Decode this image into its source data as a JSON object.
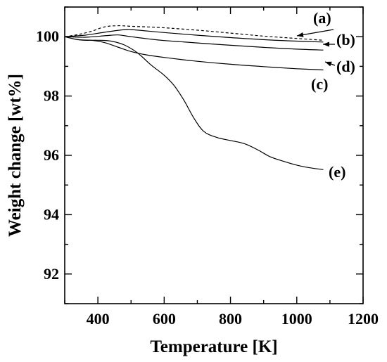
{
  "chart_data": {
    "type": "line",
    "xlabel": "Temperature [K]",
    "ylabel": "Weight change [wt%]",
    "xlim": [
      300,
      1200
    ],
    "ylim": [
      91,
      101
    ],
    "xticks": [
      400,
      600,
      800,
      1000,
      1200
    ],
    "yticks": [
      92,
      94,
      96,
      98,
      100
    ],
    "x_tick_labels": [
      "400",
      "600",
      "800",
      "1000",
      "1200"
    ],
    "y_tick_labels": [
      "92",
      "94",
      "96",
      "98",
      "100"
    ],
    "grid": false,
    "series": [
      {
        "name": "(a)",
        "style": "dashed",
        "x": [
          300,
          340,
          380,
          420,
          460,
          500,
          550,
          600,
          700,
          800,
          900,
          1000,
          1080
        ],
        "y": [
          100.0,
          100.07,
          100.18,
          100.33,
          100.37,
          100.35,
          100.33,
          100.3,
          100.22,
          100.12,
          100.02,
          99.94,
          99.88
        ]
      },
      {
        "name": "(b)",
        "style": "solid",
        "x": [
          300,
          360,
          420,
          480,
          500,
          550,
          600,
          700,
          800,
          900,
          1000,
          1080
        ],
        "y": [
          100.0,
          100.05,
          100.15,
          100.24,
          100.24,
          100.19,
          100.14,
          100.05,
          99.97,
          99.9,
          99.85,
          99.82
        ]
      },
      {
        "name": "(d)",
        "style": "solid",
        "x": [
          300,
          360,
          420,
          460,
          500,
          550,
          600,
          700,
          800,
          900,
          1000,
          1080
        ],
        "y": [
          100.0,
          99.98,
          100.03,
          100.06,
          100.0,
          99.93,
          99.87,
          99.79,
          99.71,
          99.64,
          99.58,
          99.55
        ]
      },
      {
        "name": "(c)",
        "style": "solid",
        "x": [
          300,
          340,
          380,
          420,
          460,
          500,
          550,
          600,
          700,
          800,
          900,
          1000,
          1080
        ],
        "y": [
          100.0,
          99.9,
          99.88,
          99.8,
          99.65,
          99.5,
          99.38,
          99.3,
          99.17,
          99.07,
          98.99,
          98.92,
          98.88
        ]
      },
      {
        "name": "(e)",
        "style": "solid",
        "x": [
          300,
          330,
          360,
          400,
          440,
          480,
          520,
          560,
          600,
          630,
          660,
          690,
          720,
          760,
          800,
          840,
          880,
          920,
          960,
          1000,
          1040,
          1080
        ],
        "y": [
          100.0,
          99.92,
          99.88,
          99.88,
          99.85,
          99.72,
          99.45,
          99.05,
          98.7,
          98.35,
          97.85,
          97.25,
          96.8,
          96.6,
          96.5,
          96.4,
          96.2,
          95.95,
          95.8,
          95.67,
          95.58,
          95.52
        ]
      }
    ]
  }
}
